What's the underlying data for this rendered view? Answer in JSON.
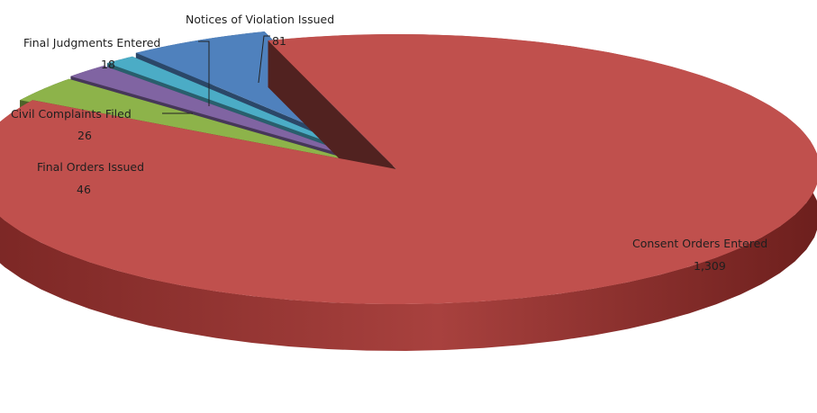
{
  "chart_data": {
    "type": "pie",
    "style": "3d-exploded",
    "legend": "none",
    "title": "",
    "slices": [
      {
        "name": "Consent Orders Entered",
        "value": 1309,
        "value_label": "1,309",
        "color": "#c0504d"
      },
      {
        "name": "Final Orders Issued",
        "value": 46,
        "value_label": "46",
        "color": "#8db34a"
      },
      {
        "name": "Civil Complaints Filed",
        "value": 26,
        "value_label": "26",
        "color": "#8064a2"
      },
      {
        "name": "Final Judgments Entered",
        "value": 18,
        "value_label": "18",
        "color": "#4bacc6"
      },
      {
        "name": "Notices of Violation Issued",
        "value": 81,
        "value_label": "81",
        "color": "#4f81bd"
      }
    ]
  }
}
